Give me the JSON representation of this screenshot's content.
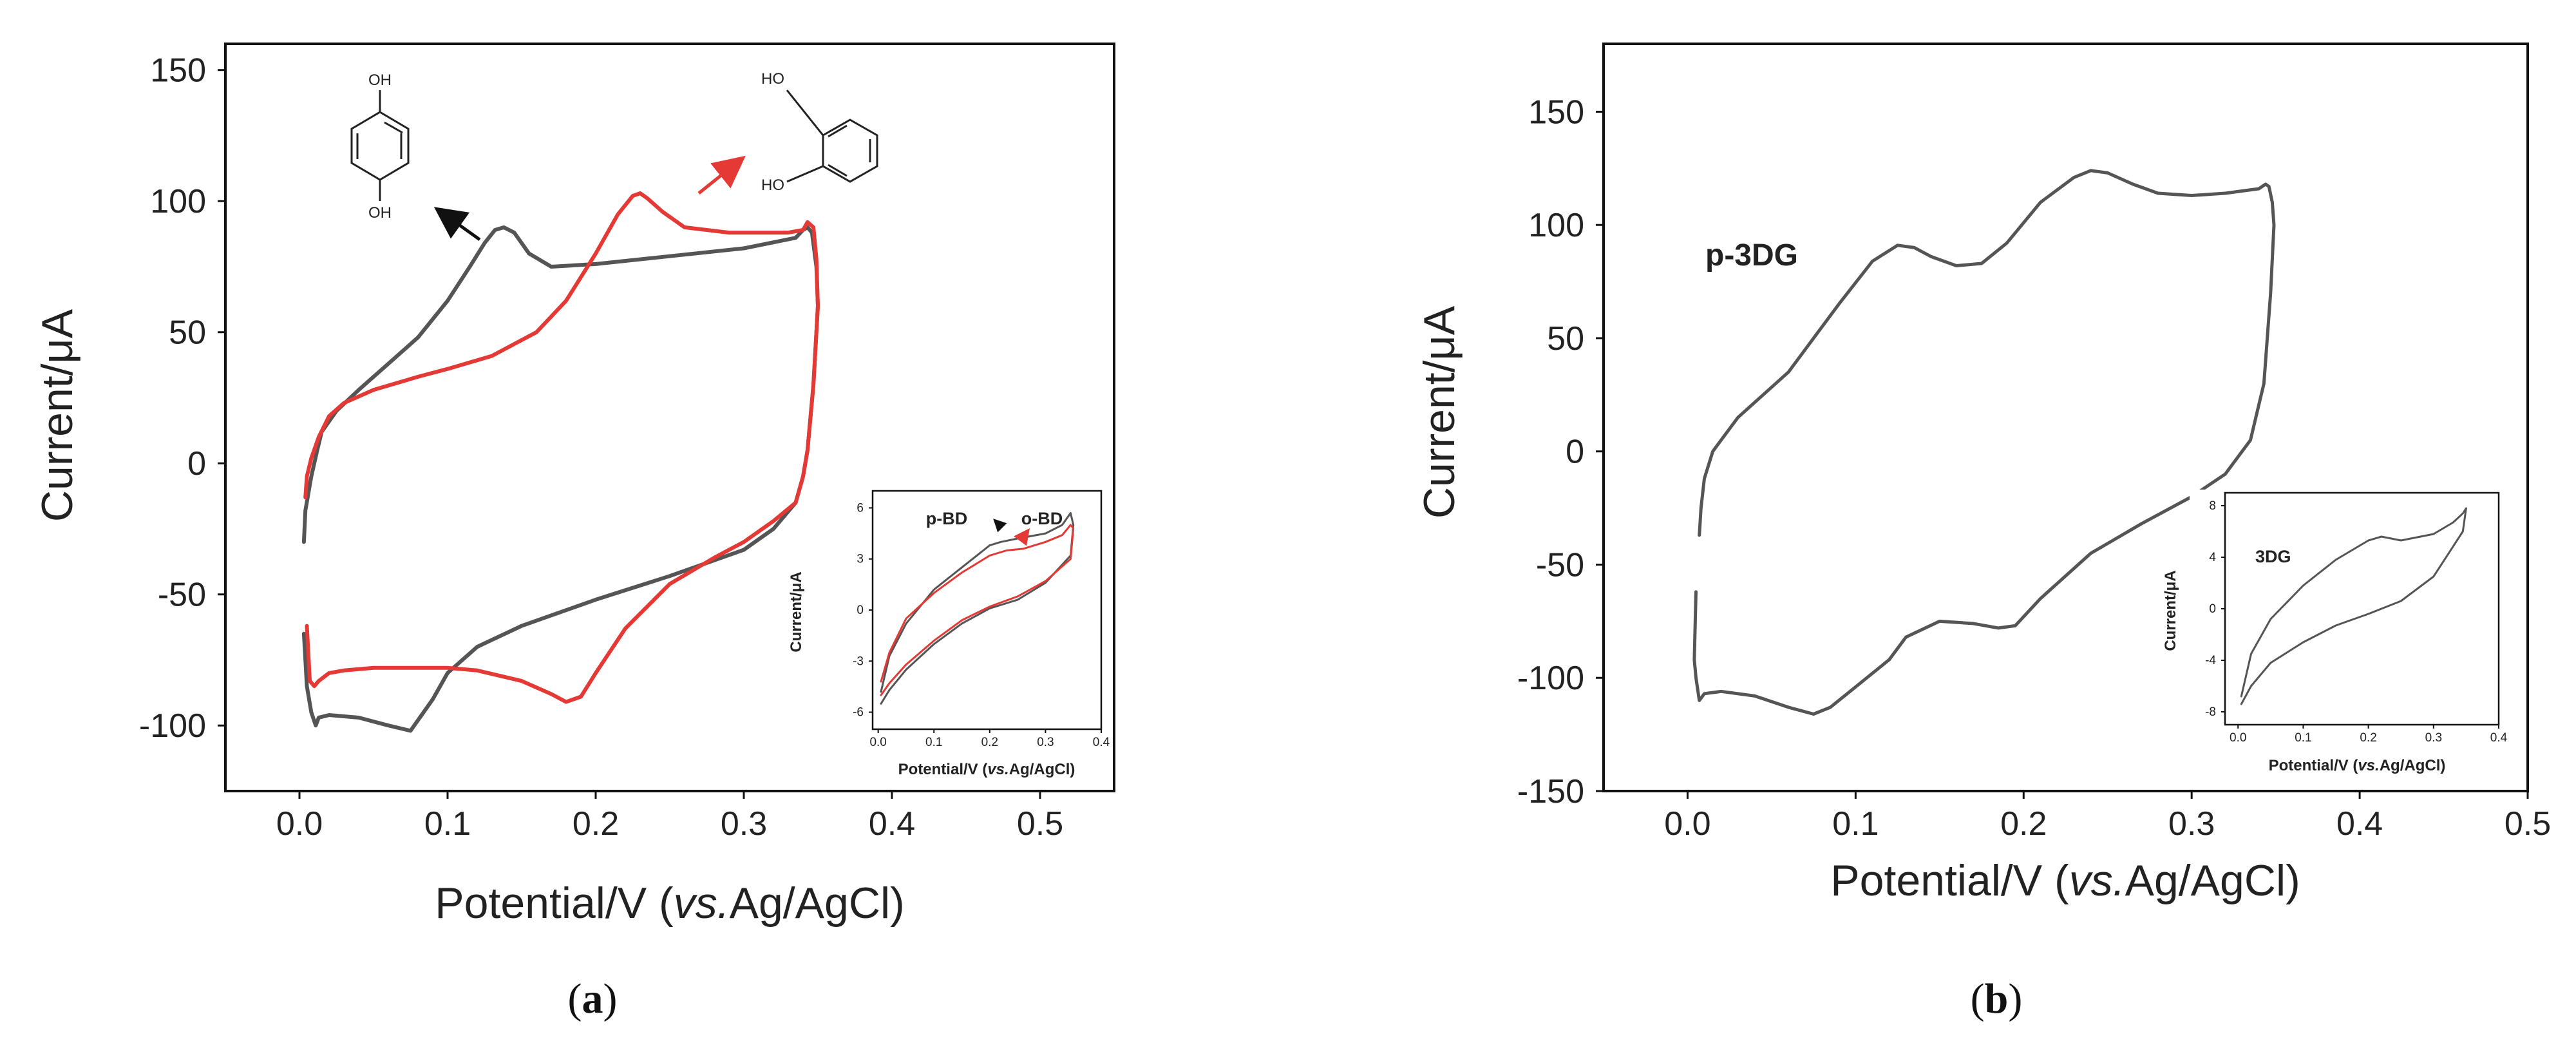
{
  "colors": {
    "black_trace": "#555555",
    "red_trace": "#e53935",
    "axis": "#111111"
  },
  "chart_data": [
    {
      "type": "line",
      "panel_label": "a",
      "xlabel_parts": [
        "Potential/V (",
        "vs.",
        "Ag/AgCl)"
      ],
      "ylabel": "Current/μA",
      "xlim": [
        -0.05,
        0.55
      ],
      "ylim": [
        -125,
        160
      ],
      "xticks": [
        0.0,
        0.1,
        0.2,
        0.3,
        0.4,
        0.5
      ],
      "xtick_labels": [
        "0.0",
        "0.1",
        "0.2",
        "0.3",
        "0.4",
        "0.5"
      ],
      "yticks": [
        -100,
        -50,
        0,
        50,
        100,
        150
      ],
      "ytick_labels": [
        "-100",
        "-50",
        "0",
        "50",
        "100",
        "150"
      ],
      "structures": [
        {
          "name": "hydroquinone",
          "labels": [
            "OH",
            "OH"
          ]
        },
        {
          "name": "catechol",
          "labels": [
            "HO",
            "HO"
          ]
        }
      ],
      "series": [
        {
          "name": "p-BD",
          "color": "#555555",
          "x": [
            0.003,
            0.004,
            0.008,
            0.012,
            0.015,
            0.025,
            0.04,
            0.06,
            0.08,
            0.1,
            0.115,
            0.125,
            0.132,
            0.138,
            0.145,
            0.155,
            0.17,
            0.2,
            0.25,
            0.3,
            0.335,
            0.34,
            0.343,
            0.346,
            0.349,
            0.35,
            0.347,
            0.343,
            0.34,
            0.335,
            0.32,
            0.3,
            0.25,
            0.2,
            0.15,
            0.12,
            0.1,
            0.09,
            0.075,
            0.06,
            0.04,
            0.02,
            0.013,
            0.011,
            0.008,
            0.005,
            0.003
          ],
          "y": [
            -30,
            -18,
            -5,
            5,
            12,
            20,
            28,
            38,
            48,
            62,
            75,
            84,
            89,
            90,
            88,
            80,
            75,
            76,
            79,
            82,
            86,
            89,
            90,
            88,
            75,
            60,
            30,
            5,
            -5,
            -15,
            -25,
            -33,
            -43,
            -52,
            -62,
            -70,
            -80,
            -90,
            -102,
            -100,
            -97,
            -96,
            -97,
            -100,
            -95,
            -85,
            -65
          ]
        },
        {
          "name": "o-BD",
          "color": "#e53935",
          "x": [
            0.004,
            0.005,
            0.008,
            0.013,
            0.02,
            0.03,
            0.05,
            0.08,
            0.1,
            0.13,
            0.16,
            0.18,
            0.2,
            0.215,
            0.225,
            0.23,
            0.235,
            0.245,
            0.26,
            0.29,
            0.33,
            0.34,
            0.343,
            0.347,
            0.349,
            0.35,
            0.347,
            0.343,
            0.34,
            0.335,
            0.32,
            0.3,
            0.28,
            0.25,
            0.22,
            0.2,
            0.19,
            0.18,
            0.17,
            0.15,
            0.12,
            0.1,
            0.08,
            0.05,
            0.03,
            0.02,
            0.013,
            0.01,
            0.007,
            0.005
          ],
          "y": [
            -13,
            -5,
            2,
            10,
            18,
            23,
            28,
            33,
            36,
            41,
            50,
            62,
            80,
            95,
            102,
            103,
            101,
            96,
            90,
            88,
            88,
            89,
            92,
            90,
            78,
            60,
            30,
            5,
            -5,
            -15,
            -22,
            -30,
            -36,
            -46,
            -63,
            -80,
            -89,
            -91,
            -88,
            -83,
            -79,
            -78,
            -78,
            -78,
            -79,
            -80,
            -83,
            -85,
            -83,
            -62
          ]
        }
      ],
      "arrows": [
        {
          "label": "p-BD",
          "color": "#111111",
          "x": 0.115,
          "y": 80
        },
        {
          "label": "o-BD",
          "color": "#e53935",
          "x": 0.245,
          "y": 100
        }
      ],
      "inset": {
        "xlabel_parts": [
          "Potential/V (",
          "vs.",
          "Ag/AgCl)"
        ],
        "ylabel": "Current/μA",
        "xlim": [
          -0.01,
          0.4
        ],
        "ylim": [
          -7,
          7
        ],
        "xticks": [
          0.0,
          0.1,
          0.2,
          0.3,
          0.4
        ],
        "xtick_labels": [
          "0.0",
          "0.1",
          "0.2",
          "0.3",
          "0.4"
        ],
        "yticks": [
          -6,
          -3,
          0,
          3,
          6
        ],
        "ytick_labels": [
          "-6",
          "-3",
          "0",
          "3",
          "6"
        ],
        "annotations": [
          "p-BD",
          "o-BD"
        ],
        "series": [
          {
            "name": "p-BD",
            "color": "#555555",
            "x": [
              0.005,
              0.02,
              0.05,
              0.1,
              0.15,
              0.2,
              0.22,
              0.25,
              0.3,
              0.33,
              0.345,
              0.35,
              0.345,
              0.3,
              0.25,
              0.2,
              0.15,
              0.1,
              0.05,
              0.02,
              0.005
            ],
            "y": [
              -4.8,
              -2.7,
              -0.8,
              1.2,
              2.5,
              3.8,
              4.0,
              4.2,
              4.5,
              5.0,
              5.7,
              5.0,
              3.2,
              1.6,
              0.6,
              0.1,
              -0.8,
              -2.0,
              -3.5,
              -4.7,
              -5.5
            ]
          },
          {
            "name": "o-BD",
            "color": "#e53935",
            "x": [
              0.005,
              0.02,
              0.05,
              0.1,
              0.15,
              0.2,
              0.23,
              0.26,
              0.3,
              0.33,
              0.345,
              0.35,
              0.345,
              0.3,
              0.25,
              0.2,
              0.15,
              0.1,
              0.05,
              0.02,
              0.005
            ],
            "y": [
              -4.2,
              -2.5,
              -0.5,
              1.0,
              2.2,
              3.2,
              3.5,
              3.6,
              4.0,
              4.4,
              5.0,
              4.8,
              3.0,
              1.7,
              0.8,
              0.2,
              -0.6,
              -1.8,
              -3.2,
              -4.3,
              -5.0
            ]
          }
        ]
      }
    },
    {
      "type": "line",
      "panel_label": "b",
      "xlabel_parts": [
        "Potential/V (",
        "vs.",
        "Ag/AgCl)"
      ],
      "ylabel": "Current/μA",
      "xlim": [
        -0.05,
        0.5
      ],
      "ylim": [
        -150,
        180
      ],
      "xticks": [
        0.0,
        0.1,
        0.2,
        0.3,
        0.4,
        0.5
      ],
      "xtick_labels": [
        "0.0",
        "0.1",
        "0.2",
        "0.3",
        "0.4",
        "0.5"
      ],
      "yticks": [
        -150,
        -100,
        -50,
        0,
        50,
        100,
        150
      ],
      "ytick_labels": [
        "-150",
        "-100",
        "-50",
        "0",
        "50",
        "100",
        "150"
      ],
      "annotation": "p-3DG",
      "series": [
        {
          "name": "p-3DG",
          "color": "#555555",
          "x": [
            0.007,
            0.008,
            0.01,
            0.015,
            0.03,
            0.06,
            0.09,
            0.11,
            0.125,
            0.135,
            0.145,
            0.16,
            0.175,
            0.19,
            0.21,
            0.23,
            0.24,
            0.25,
            0.265,
            0.28,
            0.3,
            0.32,
            0.34,
            0.344,
            0.346,
            0.348,
            0.349,
            0.347,
            0.343,
            0.335,
            0.32,
            0.3,
            0.27,
            0.24,
            0.21,
            0.195,
            0.185,
            0.17,
            0.15,
            0.13,
            0.12,
            0.1,
            0.085,
            0.075,
            0.06,
            0.04,
            0.02,
            0.01,
            0.007,
            0.005,
            0.004,
            0.005
          ],
          "y": [
            -37,
            -25,
            -12,
            0,
            15,
            35,
            65,
            84,
            91,
            90,
            86,
            82,
            83,
            92,
            110,
            121,
            124,
            123,
            118,
            114,
            113,
            114,
            116,
            118,
            117,
            110,
            100,
            70,
            30,
            5,
            -10,
            -20,
            -32,
            -45,
            -65,
            -77,
            -78,
            -76,
            -75,
            -82,
            -92,
            -104,
            -113,
            -116,
            -113,
            -108,
            -106,
            -107,
            -110,
            -100,
            -92,
            -62
          ]
        }
      ],
      "inset": {
        "title": "3DG",
        "xlabel_parts": [
          "Potential/V (",
          "vs.",
          "Ag/AgCl)"
        ],
        "ylabel": "Current/μA",
        "xlim": [
          -0.02,
          0.4
        ],
        "ylim": [
          -9,
          9
        ],
        "xticks": [
          0.0,
          0.1,
          0.2,
          0.3,
          0.4
        ],
        "xtick_labels": [
          "0.0",
          "0.1",
          "0.2",
          "0.3",
          "0.4"
        ],
        "yticks": [
          -8,
          -4,
          0,
          4,
          8
        ],
        "ytick_labels": [
          "-8",
          "-4",
          "0",
          "4",
          "8"
        ],
        "series": [
          {
            "name": "3DG",
            "color": "#555555",
            "x": [
              0.005,
              0.02,
              0.05,
              0.1,
              0.15,
              0.2,
              0.22,
              0.25,
              0.3,
              0.33,
              0.345,
              0.35,
              0.345,
              0.3,
              0.25,
              0.2,
              0.15,
              0.1,
              0.05,
              0.02,
              0.005
            ],
            "y": [
              -6.8,
              -3.5,
              -0.8,
              1.8,
              3.8,
              5.3,
              5.6,
              5.3,
              5.8,
              6.7,
              7.4,
              7.8,
              6.0,
              2.5,
              0.6,
              -0.4,
              -1.3,
              -2.6,
              -4.2,
              -6.0,
              -7.4
            ]
          }
        ]
      }
    }
  ]
}
